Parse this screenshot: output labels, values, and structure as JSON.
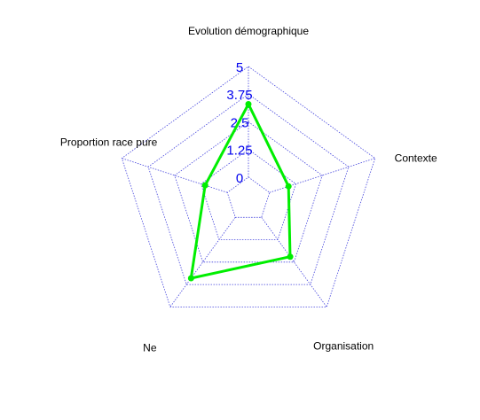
{
  "chart_data": {
    "type": "radar",
    "axes": [
      "Evolution démographique",
      "Contexte",
      "Organisation",
      "Ne",
      "Proportion race pure"
    ],
    "range": [
      0,
      5
    ],
    "tick_values": [
      0,
      1.25,
      2.5,
      3.75,
      5
    ],
    "tick_labels": [
      "0",
      "1.25",
      "2.5",
      "3.75",
      "5"
    ],
    "grid": true,
    "series": [
      {
        "values": [
          3.3,
          0.9,
          2.2,
          3.4,
          1.05
        ],
        "color": "#00ee00"
      }
    ]
  }
}
